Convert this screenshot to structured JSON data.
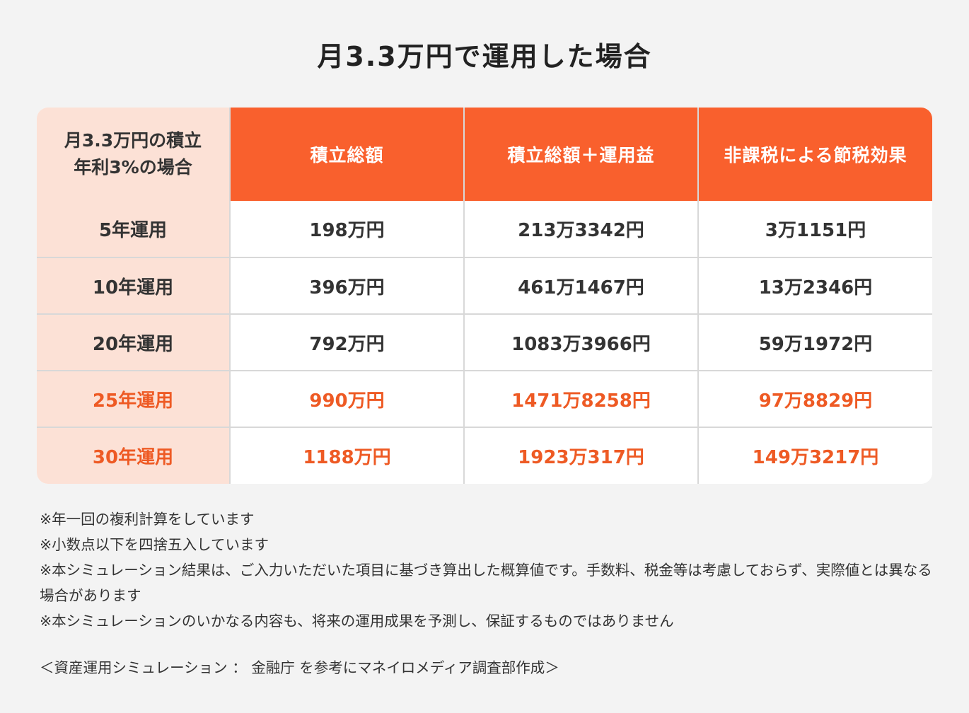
{
  "title": "月3.3万円で運用した場合",
  "table": {
    "corner_line1": "月3.3万円の積立",
    "corner_line2": "年利3%の場合",
    "columns": [
      "積立総額",
      "積立総額＋運用益",
      "非課税による節税効果"
    ],
    "rows": [
      {
        "label": "5年運用",
        "cells": [
          "198万円",
          "213万3342円",
          "3万1151円"
        ]
      },
      {
        "label": "10年運用",
        "cells": [
          "396万円",
          "461万1467円",
          "13万2346円"
        ]
      },
      {
        "label": "20年運用",
        "cells": [
          "792万円",
          "1083万3966円",
          "59万1972円"
        ]
      },
      {
        "label": "25年運用",
        "cells": [
          "990万円",
          "1471万8258円",
          "97万8829円"
        ]
      },
      {
        "label": "30年運用",
        "cells": [
          "1188万円",
          "1923万317円",
          "149万3217円"
        ]
      }
    ]
  },
  "notes": [
    "※年一回の複利計算をしています",
    "※小数点以下を四捨五入しています",
    "※本シミュレーション結果は、ご入力いただいた項目に基づき算出した概算値です。手数料、税金等は考慮しておらず、実際値とは異なる場合があります",
    "※本シミュレーションのいかなる内容も、将来の運用成果を予測し、保証するものではありません"
  ],
  "source": "＜資産運用シミュレーション ： 金融庁 を参考にマネイロメディア調査部作成＞",
  "colors": {
    "accent": "#f9602d",
    "highlight_text": "#ee5a24",
    "row_header_bg": "#fce1d6",
    "page_bg": "#f3f3f3"
  }
}
